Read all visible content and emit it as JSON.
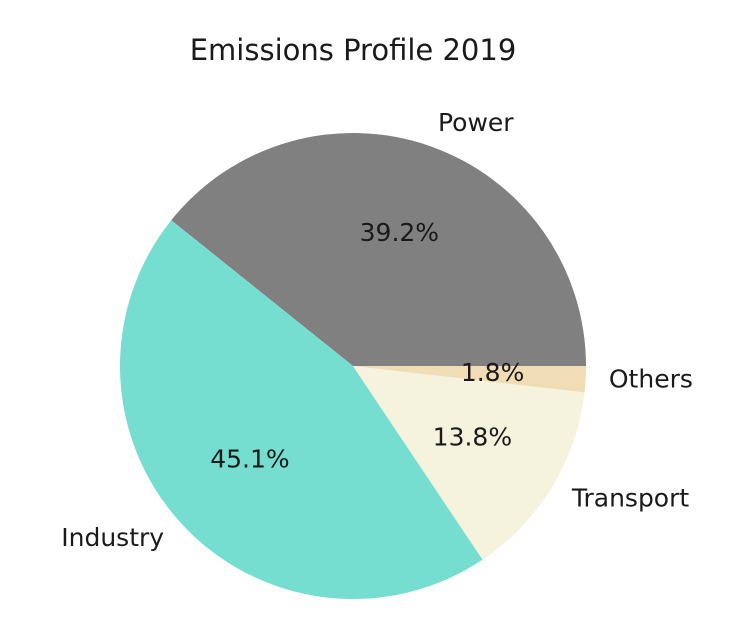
{
  "chart_data": {
    "type": "pie",
    "title": "Emissions Profile 2019",
    "start_angle_deg": 0,
    "direction": "counterclockwise",
    "slices": [
      {
        "label": "Power",
        "value": 39.2,
        "pct_label": "39.2%",
        "color": "#808080"
      },
      {
        "label": "Industry",
        "value": 45.1,
        "pct_label": "45.1%",
        "color": "#76ddd1"
      },
      {
        "label": "Transport",
        "value": 13.8,
        "pct_label": "13.8%",
        "color": "#f5f2de"
      },
      {
        "label": "Others",
        "value": 1.8,
        "pct_label": "1.8%",
        "color": "#f0dcb5"
      }
    ]
  }
}
